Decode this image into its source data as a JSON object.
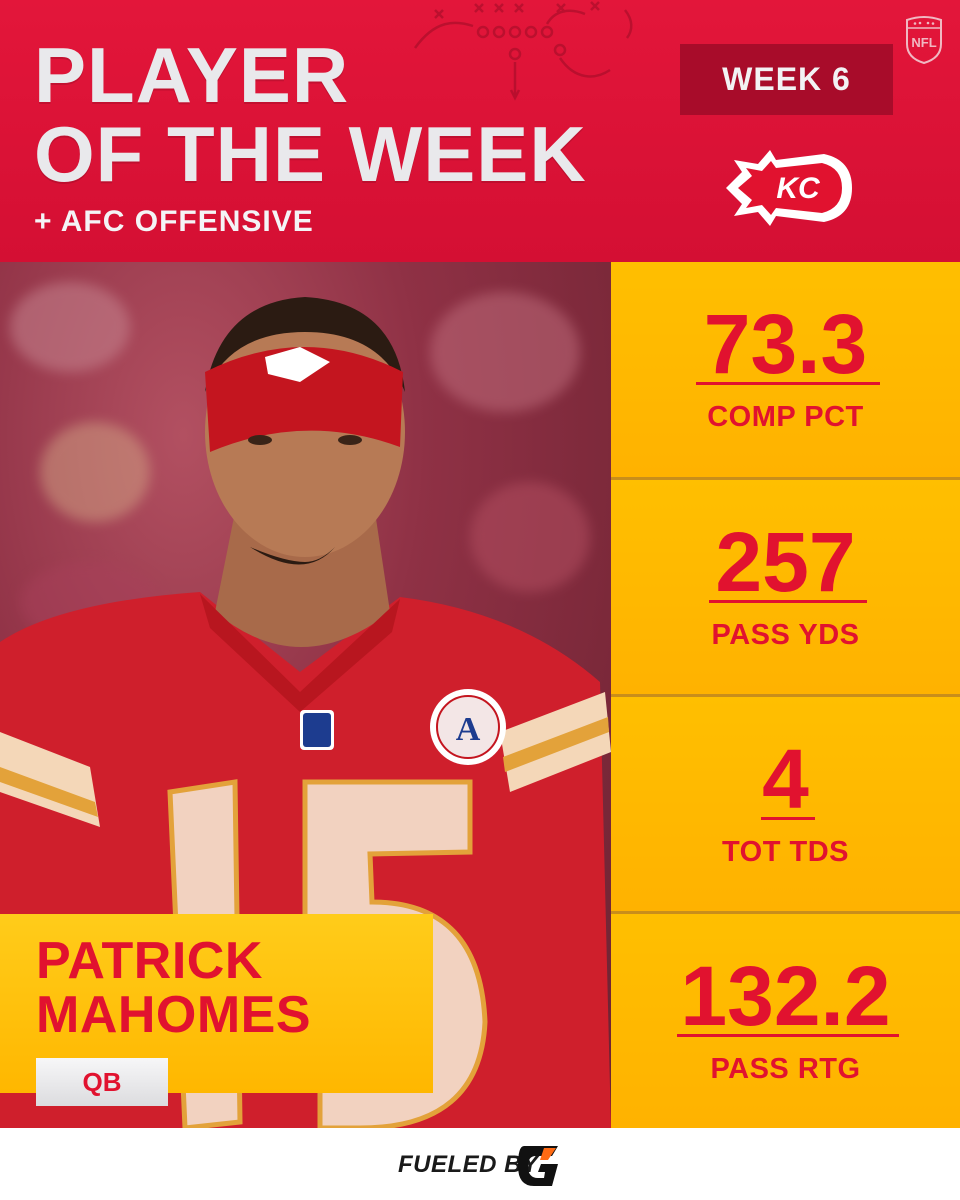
{
  "header": {
    "title_line_1": "PLAYER",
    "title_line_2": "OF THE WEEK",
    "subtitle": "+ AFC OFFENSIVE",
    "week_label": "WEEK 6",
    "league_icon": "nfl-shield-icon",
    "team_logo": "chiefs-arrowhead-logo"
  },
  "player": {
    "name_line_1": "PATRICK",
    "name_line_2": "MAHOMES",
    "position": "QB",
    "jersey_number": "15"
  },
  "stats": [
    {
      "value": "73.3",
      "label": "COMP PCT"
    },
    {
      "value": "257",
      "label": "PASS YDS"
    },
    {
      "value": "4",
      "label": "TOT TDS"
    },
    {
      "value": "132.2",
      "label": "PASS RTG"
    }
  ],
  "footer": {
    "sponsor_text": "FUELED BY",
    "sponsor_logo": "gatorade-g-icon"
  },
  "colors": {
    "header_red": "#e3163a",
    "badge_red": "#a80c2a",
    "stat_gold": "#ffbf00",
    "text_red": "#e1122f",
    "title_silver": "#e9e9ec"
  }
}
